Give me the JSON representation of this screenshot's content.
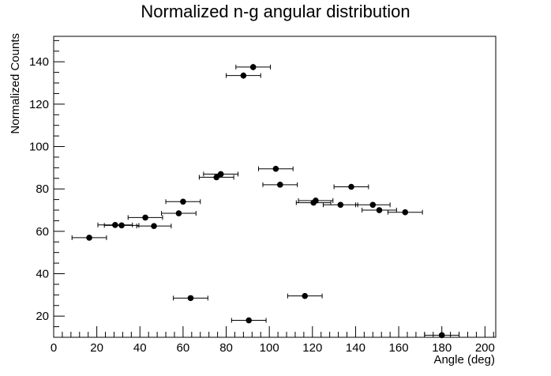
{
  "chart_data": {
    "type": "scatter",
    "title": "Normalized n-g angular distribution",
    "xlabel": "Angle (deg)",
    "ylabel": "Normalized Counts",
    "xlim": [
      0,
      205
    ],
    "ylim": [
      10,
      152
    ],
    "x_ticks": [
      0,
      20,
      40,
      60,
      80,
      100,
      120,
      140,
      160,
      180,
      200
    ],
    "y_ticks": [
      20,
      40,
      60,
      80,
      100,
      120,
      140
    ],
    "grid": false,
    "legend": "none",
    "marker_color": "#000000",
    "points": [
      {
        "x": 16.5,
        "y": 57.0,
        "xerr": 8.0,
        "yerr": 0.8
      },
      {
        "x": 28.5,
        "y": 63.0,
        "xerr": 8.0,
        "yerr": 0.8
      },
      {
        "x": 31.5,
        "y": 62.8,
        "xerr": 8.0,
        "yerr": 0.8
      },
      {
        "x": 42.5,
        "y": 66.5,
        "xerr": 8.0,
        "yerr": 0.8
      },
      {
        "x": 46.5,
        "y": 62.5,
        "xerr": 8.0,
        "yerr": 0.8
      },
      {
        "x": 58.0,
        "y": 68.5,
        "xerr": 8.0,
        "yerr": 0.8
      },
      {
        "x": 60.0,
        "y": 74.0,
        "xerr": 8.0,
        "yerr": 0.8
      },
      {
        "x": 63.5,
        "y": 28.5,
        "xerr": 8.0,
        "yerr": 0.8
      },
      {
        "x": 75.5,
        "y": 85.5,
        "xerr": 8.0,
        "yerr": 0.8
      },
      {
        "x": 77.5,
        "y": 87.0,
        "xerr": 8.0,
        "yerr": 0.8
      },
      {
        "x": 88.0,
        "y": 133.5,
        "xerr": 8.0,
        "yerr": 1.5
      },
      {
        "x": 90.5,
        "y": 18.0,
        "xerr": 8.0,
        "yerr": 0.8
      },
      {
        "x": 92.5,
        "y": 137.5,
        "xerr": 8.0,
        "yerr": 1.5
      },
      {
        "x": 103.0,
        "y": 89.5,
        "xerr": 8.0,
        "yerr": 0.8
      },
      {
        "x": 105.0,
        "y": 82.0,
        "xerr": 8.0,
        "yerr": 0.8
      },
      {
        "x": 116.5,
        "y": 29.5,
        "xerr": 8.0,
        "yerr": 0.8
      },
      {
        "x": 120.5,
        "y": 73.5,
        "xerr": 8.0,
        "yerr": 0.8
      },
      {
        "x": 121.5,
        "y": 74.5,
        "xerr": 8.0,
        "yerr": 0.8
      },
      {
        "x": 133.0,
        "y": 72.5,
        "xerr": 8.0,
        "yerr": 0.8
      },
      {
        "x": 138.0,
        "y": 81.0,
        "xerr": 8.0,
        "yerr": 0.8
      },
      {
        "x": 148.0,
        "y": 72.5,
        "xerr": 8.0,
        "yerr": 0.8
      },
      {
        "x": 151.0,
        "y": 70.0,
        "xerr": 8.0,
        "yerr": 0.8
      },
      {
        "x": 163.0,
        "y": 69.0,
        "xerr": 8.0,
        "yerr": 0.8
      },
      {
        "x": 180.0,
        "y": 11.0,
        "xerr": 8.0,
        "yerr": 0.8
      }
    ]
  }
}
